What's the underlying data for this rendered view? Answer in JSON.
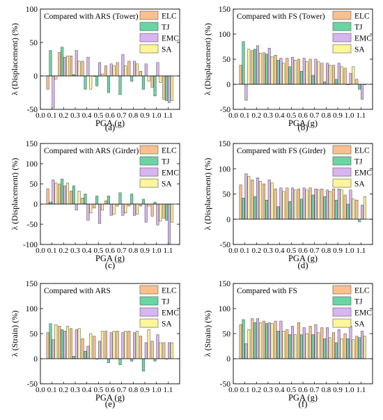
{
  "figure": {
    "x_categories": [
      "0.1",
      "0.2",
      "0.3",
      "0.4",
      "0.5",
      "0.6",
      "0.7",
      "0.8",
      "0.9",
      "1.0",
      "1.1"
    ],
    "x_tick_labels": [
      "0.0",
      "0.1",
      "0.2",
      "0.3",
      "0.4",
      "0.5",
      "0.6",
      "0.7",
      "0.8",
      "0.9",
      "1.0",
      "1.1"
    ],
    "xlabel": "PGA (g)",
    "legend": [
      "ELC",
      "TJ",
      "EMC",
      "SA"
    ],
    "colors": {
      "ELC": "#fdc08c",
      "TJ": "#6ad5a4",
      "EMC": "#d9b5f0",
      "SA": "#fdf59a"
    }
  },
  "chart_data": [
    {
      "panel_label": "(a)",
      "type": "bar",
      "title": "Compared with ARS (Tower)",
      "ylabel": "λ (Displacement) (%)",
      "ylim": [
        -50,
        100
      ],
      "yticks": [
        -50,
        0,
        50,
        100
      ],
      "xlabel": "PGA (g)",
      "categories": [
        "0.1",
        "0.2",
        "0.3",
        "0.4",
        "0.5",
        "0.6",
        "0.7",
        "0.8",
        "0.9",
        "1.0",
        "1.1"
      ],
      "series": [
        {
          "name": "ELC",
          "values": [
            -20,
            35,
            30,
            22,
            0,
            15,
            20,
            22,
            7,
            -17,
            -35
          ]
        },
        {
          "name": "TJ",
          "values": [
            38,
            43,
            2,
            -20,
            -15,
            -25,
            -28,
            -8,
            -20,
            -30,
            -37
          ]
        },
        {
          "name": "EMC",
          "values": [
            -48,
            28,
            38,
            28,
            20,
            18,
            32,
            22,
            18,
            20,
            -40
          ]
        },
        {
          "name": "SA",
          "values": [
            -5,
            30,
            22,
            -20,
            3,
            15,
            15,
            18,
            -8,
            -10,
            -37
          ]
        }
      ]
    },
    {
      "panel_label": "(b)",
      "type": "bar",
      "title": "Compared with FS (Tower)",
      "ylabel": "λ (Displacement) (%)",
      "ylim": [
        -50,
        150
      ],
      "yticks": [
        -50,
        0,
        50,
        100,
        150
      ],
      "xlabel": "PGA (g)",
      "categories": [
        "0.1",
        "0.2",
        "0.3",
        "0.4",
        "0.5",
        "0.6",
        "0.7",
        "0.8",
        "0.9",
        "1.0",
        "1.1"
      ],
      "series": [
        {
          "name": "ELC",
          "values": [
            38,
            67,
            63,
            58,
            52,
            50,
            50,
            42,
            38,
            32,
            10
          ]
        },
        {
          "name": "TJ",
          "values": [
            85,
            70,
            60,
            48,
            35,
            26,
            18,
            5,
            10,
            0,
            -10
          ]
        },
        {
          "name": "EMC",
          "values": [
            -32,
            77,
            72,
            52,
            54,
            52,
            50,
            42,
            42,
            22,
            -30
          ]
        },
        {
          "name": "SA",
          "values": [
            70,
            62,
            55,
            42,
            48,
            45,
            45,
            38,
            35,
            35,
            0
          ]
        }
      ]
    },
    {
      "panel_label": "(c)",
      "type": "bar",
      "title": "Compared with ARS (Girder)",
      "ylabel": "λ (Displacement) (%)",
      "ylim": [
        -100,
        150
      ],
      "yticks": [
        -100,
        -50,
        0,
        50,
        100,
        150
      ],
      "xlabel": "PGA (g)",
      "categories": [
        "0.1",
        "0.2",
        "0.3",
        "0.4",
        "0.5",
        "0.6",
        "0.7",
        "0.8",
        "0.9",
        "1.0",
        "1.1"
      ],
      "series": [
        {
          "name": "ELC",
          "values": [
            38,
            50,
            32,
            15,
            -10,
            8,
            -5,
            -5,
            -5,
            -30,
            -35
          ]
        },
        {
          "name": "TJ",
          "values": [
            5,
            62,
            45,
            25,
            20,
            20,
            28,
            25,
            12,
            5,
            -40
          ]
        },
        {
          "name": "EMC",
          "values": [
            60,
            45,
            -15,
            -40,
            -48,
            -28,
            -28,
            -28,
            -45,
            -52,
            -100
          ]
        },
        {
          "name": "SA",
          "values": [
            52,
            52,
            32,
            -22,
            -15,
            -25,
            -22,
            -25,
            -5,
            -42,
            -45
          ]
        }
      ]
    },
    {
      "panel_label": "(d)",
      "type": "bar",
      "title": "Compared with FS (Girder)",
      "ylabel": "λ (Displacement) (%)",
      "ylim": [
        -50,
        150
      ],
      "yticks": [
        -50,
        0,
        50,
        100,
        150
      ],
      "xlabel": "PGA (g)",
      "categories": [
        "0.1",
        "0.2",
        "0.3",
        "0.4",
        "0.5",
        "0.6",
        "0.7",
        "0.8",
        "0.9",
        "1.0",
        "1.1"
      ],
      "series": [
        {
          "name": "ELC",
          "values": [
            68,
            78,
            70,
            60,
            62,
            60,
            62,
            60,
            60,
            48,
            38
          ]
        },
        {
          "name": "TJ",
          "values": [
            42,
            45,
            38,
            25,
            35,
            40,
            48,
            45,
            38,
            30,
            -5
          ]
        },
        {
          "name": "EMC",
          "values": [
            90,
            82,
            78,
            62,
            62,
            62,
            60,
            58,
            60,
            58,
            28
          ]
        },
        {
          "name": "SA",
          "values": [
            85,
            75,
            72,
            55,
            58,
            58,
            58,
            55,
            58,
            40,
            45
          ]
        }
      ]
    },
    {
      "panel_label": "(e)",
      "type": "bar",
      "title": "Compared with ARS",
      "ylabel": "λ (Strain) (%)",
      "ylim": [
        -50,
        150
      ],
      "yticks": [
        -50,
        0,
        50,
        100,
        150
      ],
      "xlabel": "PGA (g)",
      "categories": [
        "0.1",
        "0.2",
        "0.3",
        "0.4",
        "0.5",
        "0.6",
        "0.7",
        "0.8",
        "0.9",
        "1.0",
        "1.1"
      ],
      "series": [
        {
          "name": "ELC",
          "values": [
            52,
            65,
            60,
            40,
            45,
            55,
            55,
            55,
            45,
            35,
            32
          ]
        },
        {
          "name": "TJ",
          "values": [
            70,
            58,
            5,
            15,
            0,
            -8,
            -12,
            -5,
            -25,
            -5,
            0
          ]
        },
        {
          "name": "EMC",
          "values": [
            38,
            55,
            58,
            25,
            35,
            52,
            52,
            52,
            32,
            48,
            32
          ]
        },
        {
          "name": "SA",
          "values": [
            68,
            65,
            60,
            50,
            55,
            55,
            55,
            55,
            58,
            32,
            32
          ]
        }
      ]
    },
    {
      "panel_label": "(f)",
      "type": "bar",
      "title": "Compared with FS",
      "ylabel": "λ (Strain) (%)",
      "ylim": [
        -50,
        150
      ],
      "yticks": [
        -50,
        0,
        50,
        100,
        150
      ],
      "xlabel": "PGA (g)",
      "categories": [
        "0.1",
        "0.2",
        "0.3",
        "0.4",
        "0.5",
        "0.6",
        "0.7",
        "0.8",
        "0.9",
        "1.0",
        "1.1"
      ],
      "series": [
        {
          "name": "ELC",
          "values": [
            68,
            80,
            75,
            75,
            58,
            72,
            65,
            62,
            52,
            50,
            45
          ]
        },
        {
          "name": "TJ",
          "values": [
            78,
            72,
            70,
            55,
            48,
            48,
            48,
            40,
            32,
            40,
            42
          ]
        },
        {
          "name": "EMC",
          "values": [
            30,
            80,
            72,
            75,
            65,
            62,
            68,
            62,
            58,
            65,
            55
          ]
        },
        {
          "name": "SA",
          "values": [
            58,
            72,
            70,
            55,
            48,
            50,
            52,
            42,
            40,
            38,
            45
          ]
        }
      ]
    }
  ]
}
